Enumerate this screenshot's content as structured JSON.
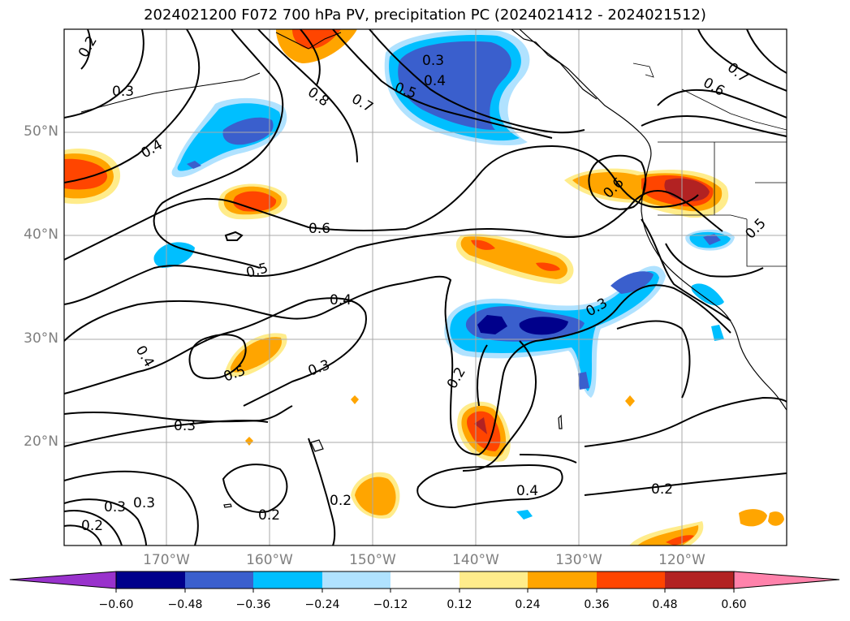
{
  "title": "2024021200 F072 700 hPa PV, precipitation PC (2024021412 - 2024021512)",
  "lat_labels": [
    "50°N",
    "40°N",
    "30°N",
    "20°N"
  ],
  "lon_labels": [
    "170°W",
    "160°W",
    "150°W",
    "140°W",
    "130°W",
    "120°W"
  ],
  "contour_labels": [
    "0.2",
    "0.3",
    "0.4",
    "0.5",
    "0.6",
    "0.7",
    "0.8"
  ],
  "colorbar": {
    "ticks": [
      "−0.60",
      "−0.48",
      "−0.36",
      "−0.24",
      "−0.12",
      "0.12",
      "0.24",
      "0.36",
      "0.48",
      "0.60"
    ],
    "colors": [
      "#9932cc",
      "#00008b",
      "#3a5fcd",
      "#00bfff",
      "#b0e2ff",
      "#ffffff",
      "#ffec8b",
      "#ffa500",
      "#ff4500",
      "#b22222",
      "#ff82ab"
    ]
  }
}
